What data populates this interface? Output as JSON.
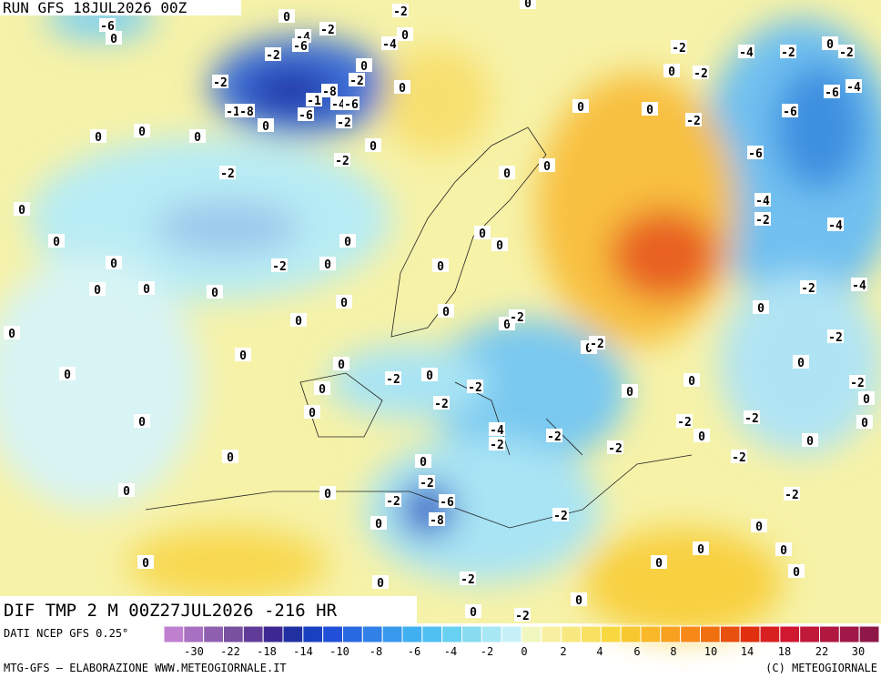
{
  "header": {
    "run": "RUN GFS 18JUL2026 00Z"
  },
  "map": {
    "field": "DIF TMP 2 M 00Z27JUL2026 -216 HR",
    "contour_labels": [
      0,
      -6,
      -4,
      -2,
      -6,
      -2,
      0,
      -2,
      0,
      -4,
      0,
      -2,
      -8,
      -1,
      -4,
      -6,
      -6,
      -2,
      -2,
      -1,
      -8,
      0,
      0,
      -2,
      0,
      0,
      0,
      -2,
      0,
      0,
      0,
      0,
      0,
      0,
      -2,
      0,
      0,
      0,
      0,
      0,
      0,
      0,
      0,
      -2,
      0,
      -2,
      -2,
      -4,
      -2,
      0,
      -2,
      -6,
      -4,
      -6,
      -6,
      -4,
      -2,
      -4,
      -2,
      -4,
      0,
      -2,
      0,
      -2,
      0,
      0,
      0,
      0,
      0,
      0,
      0,
      0,
      0,
      -2,
      0,
      -2,
      -2,
      0,
      0,
      0,
      0,
      -2,
      -2,
      -4,
      -2,
      -2,
      -2,
      0,
      0,
      -2,
      0,
      -2,
      -2,
      0,
      0,
      -2,
      0,
      0,
      0,
      0,
      0,
      0,
      0,
      0,
      0,
      -2,
      -2,
      -6,
      -8,
      0,
      -2,
      0,
      0,
      -2,
      0,
      0,
      -2,
      0,
      0,
      0
    ]
  },
  "colorbar": {
    "colors": [
      "#c080d0",
      "#a870c0",
      "#9060b0",
      "#7850a0",
      "#603c98",
      "#3c2890",
      "#2030a0",
      "#1840c0",
      "#2050d8",
      "#2868e0",
      "#3080e8",
      "#3898ec",
      "#40b0f0",
      "#50c0f0",
      "#68d0f0",
      "#88dcf0",
      "#a8e8f4",
      "#c8f0f8",
      "#f0f8c0",
      "#f8f0a0",
      "#f8e880",
      "#f8e060",
      "#f8d840",
      "#f8c830",
      "#f8b828",
      "#f8a020",
      "#f88818",
      "#f07010",
      "#e85010",
      "#e03010",
      "#d82020",
      "#d01830",
      "#c01838",
      "#b01840",
      "#a01848",
      "#901848"
    ],
    "ticks": [
      -30,
      -22,
      -18,
      -14,
      -10,
      -8,
      -6,
      -4,
      -2,
      0,
      2,
      4,
      6,
      8,
      10,
      14,
      18,
      22,
      30
    ]
  },
  "footer": {
    "source": "DATI NCEP GFS 0.25°",
    "credit": "MTG-GFS – ELABORAZIONE WWW.METEOGIORNALE.IT",
    "copyright": "(C) METEOGIORNALE"
  }
}
